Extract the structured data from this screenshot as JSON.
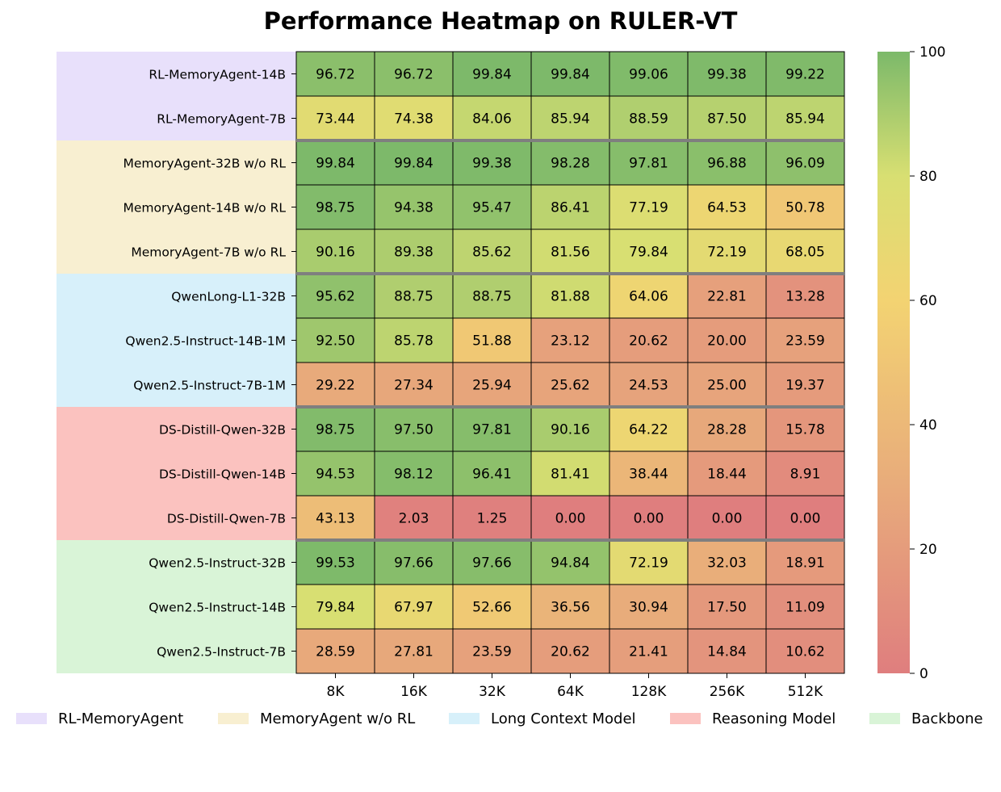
{
  "chart_data": {
    "type": "heatmap",
    "title": "Performance Heatmap on RULER-VT",
    "x_labels": [
      "8K",
      "16K",
      "32K",
      "64K",
      "128K",
      "256K",
      "512K"
    ],
    "rows": [
      {
        "label": "RL-MemoryAgent-14B",
        "group": 0,
        "values": [
          96.72,
          96.72,
          99.84,
          99.84,
          99.06,
          99.38,
          99.22
        ]
      },
      {
        "label": "RL-MemoryAgent-7B",
        "group": 0,
        "values": [
          73.44,
          74.38,
          84.06,
          85.94,
          88.59,
          87.5,
          85.94
        ]
      },
      {
        "label": "MemoryAgent-32B w/o RL",
        "group": 1,
        "values": [
          99.84,
          99.84,
          99.38,
          98.28,
          97.81,
          96.88,
          96.09
        ]
      },
      {
        "label": "MemoryAgent-14B w/o RL",
        "group": 1,
        "values": [
          98.75,
          94.38,
          95.47,
          86.41,
          77.19,
          64.53,
          50.78
        ]
      },
      {
        "label": "MemoryAgent-7B w/o RL",
        "group": 1,
        "values": [
          90.16,
          89.38,
          85.62,
          81.56,
          79.84,
          72.19,
          68.05
        ]
      },
      {
        "label": "QwenLong-L1-32B",
        "group": 2,
        "values": [
          95.62,
          88.75,
          88.75,
          81.88,
          64.06,
          22.81,
          13.28
        ]
      },
      {
        "label": "Qwen2.5-Instruct-14B-1M",
        "group": 2,
        "values": [
          92.5,
          85.78,
          51.88,
          23.12,
          20.62,
          20.0,
          23.59
        ]
      },
      {
        "label": "Qwen2.5-Instruct-7B-1M",
        "group": 2,
        "values": [
          29.22,
          27.34,
          25.94,
          25.62,
          24.53,
          25.0,
          19.37
        ]
      },
      {
        "label": "DS-Distill-Qwen-32B",
        "group": 3,
        "values": [
          98.75,
          97.5,
          97.81,
          90.16,
          64.22,
          28.28,
          15.78
        ]
      },
      {
        "label": "DS-Distill-Qwen-14B",
        "group": 3,
        "values": [
          94.53,
          98.12,
          96.41,
          81.41,
          38.44,
          18.44,
          8.91
        ]
      },
      {
        "label": "DS-Distill-Qwen-7B",
        "group": 3,
        "values": [
          43.13,
          2.03,
          1.25,
          0.0,
          0.0,
          0.0,
          0.0
        ]
      },
      {
        "label": "Qwen2.5-Instruct-32B",
        "group": 4,
        "values": [
          99.53,
          97.66,
          97.66,
          94.84,
          72.19,
          32.03,
          18.91
        ]
      },
      {
        "label": "Qwen2.5-Instruct-14B",
        "group": 4,
        "values": [
          79.84,
          67.97,
          52.66,
          36.56,
          30.94,
          17.5,
          11.09
        ]
      },
      {
        "label": "Qwen2.5-Instruct-7B",
        "group": 4,
        "values": [
          28.59,
          27.81,
          23.59,
          20.62,
          21.41,
          14.84,
          10.62
        ]
      }
    ],
    "value_range": [
      0,
      100
    ],
    "colorbar_ticks": [
      0,
      20,
      40,
      60,
      80,
      100
    ],
    "colorscale": [
      [
        0,
        "#df7e7e"
      ],
      [
        30,
        "#e8ab7b"
      ],
      [
        60,
        "#f3d372"
      ],
      [
        80,
        "#d8df72"
      ],
      [
        100,
        "#7cb96a"
      ]
    ],
    "groups": [
      {
        "name": "RL-MemoryAgent",
        "color": "#e8e0fb"
      },
      {
        "name": "MemoryAgent w/o RL",
        "color": "#f8efd1"
      },
      {
        "name": "Long Context Model",
        "color": "#d7f0fa"
      },
      {
        "name": "Reasoning Model",
        "color": "#fbc2bf"
      },
      {
        "name": "Backbone",
        "color": "#d9f4d7"
      }
    ],
    "group_separator_color": "#7f7f7f",
    "legend_position": "bottom"
  }
}
